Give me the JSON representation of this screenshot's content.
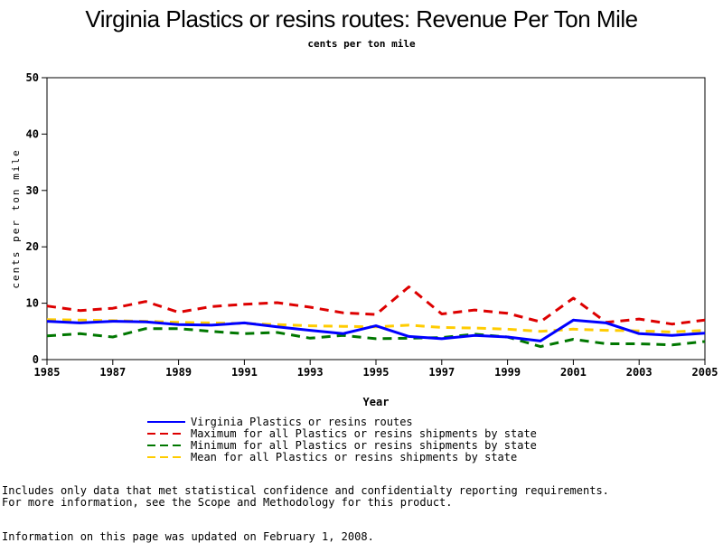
{
  "chart_data": {
    "type": "line",
    "title": "Virginia Plastics or resins routes: Revenue Per Ton Mile",
    "subtitle": "cents per ton mile",
    "xlabel": "Year",
    "ylabel": "cents per ton mile",
    "xlim": [
      1985,
      2005
    ],
    "ylim": [
      0,
      50
    ],
    "x_ticks": [
      "1985",
      "1987",
      "1989",
      "1991",
      "1993",
      "1995",
      "1997",
      "1999",
      "2001",
      "2003",
      "2005"
    ],
    "y_ticks": [
      "0",
      "10",
      "20",
      "30",
      "40",
      "50"
    ],
    "x": [
      1985,
      1986,
      1987,
      1988,
      1989,
      1990,
      1991,
      1992,
      1993,
      1994,
      1995,
      1996,
      1997,
      1998,
      1999,
      2000,
      2001,
      2002,
      2003,
      2004,
      2005
    ],
    "series": [
      {
        "name": "Virginia Plastics or resins routes",
        "color": "#0000ff",
        "dash": "solid",
        "values": [
          6.8,
          6.5,
          6.8,
          6.7,
          6.2,
          6.1,
          6.5,
          5.8,
          5.2,
          4.6,
          6.0,
          4.1,
          3.7,
          4.3,
          4.0,
          3.3,
          7.0,
          6.5,
          4.6,
          4.3,
          4.7
        ]
      },
      {
        "name": "Maximum for all Plastics or resins shipments by state",
        "color": "#dd0000",
        "dash": "dashed",
        "values": [
          9.5,
          8.7,
          9.1,
          10.3,
          8.4,
          9.4,
          9.8,
          10.1,
          9.3,
          8.3,
          8.0,
          12.9,
          8.1,
          8.8,
          8.2,
          6.7,
          10.9,
          6.6,
          7.2,
          6.3,
          7.0
        ]
      },
      {
        "name": "Minimum for all Plastics or resins shipments by state",
        "color": "#007700",
        "dash": "dashed",
        "values": [
          4.2,
          4.6,
          4.0,
          5.5,
          5.5,
          5.0,
          4.6,
          4.8,
          3.8,
          4.3,
          3.7,
          3.8,
          3.9,
          4.5,
          4.0,
          2.3,
          3.6,
          2.8,
          2.8,
          2.6,
          3.2
        ]
      },
      {
        "name": "Mean for all Plastics or resins shipments by state",
        "color": "#ffcc00",
        "dash": "dashed",
        "values": [
          7.1,
          7.0,
          6.9,
          6.8,
          6.6,
          6.5,
          6.4,
          6.2,
          6.0,
          5.9,
          5.8,
          6.1,
          5.7,
          5.6,
          5.4,
          5.0,
          5.4,
          5.2,
          5.1,
          4.9,
          5.2
        ]
      }
    ],
    "legend_position": "bottom",
    "grid": false
  },
  "footnotes": {
    "line1": "Includes only data that met statistical confidence and confidentialty reporting requirements.",
    "line2": "For more information, see the Scope and Methodology for this product.",
    "line3": "Information on this page was updated on February 1, 2008."
  }
}
